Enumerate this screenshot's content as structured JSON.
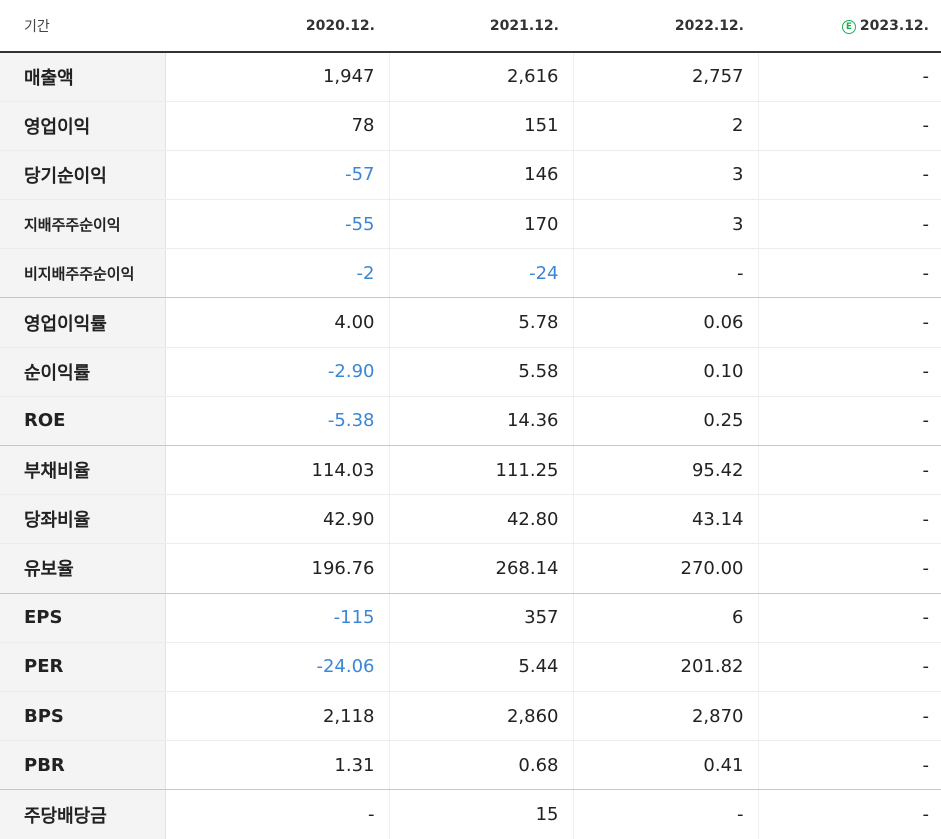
{
  "header": {
    "period_label": "기간",
    "years": [
      "2020.12.",
      "2021.12.",
      "2022.12.",
      "2023.12."
    ],
    "estimate_badge": "E"
  },
  "rows": [
    {
      "label": "매출액",
      "values": [
        "1,947",
        "2,616",
        "2,757",
        "-"
      ]
    },
    {
      "label": "영업이익",
      "values": [
        "78",
        "151",
        "2",
        "-"
      ]
    },
    {
      "label": "당기순이익",
      "values": [
        "-57",
        "146",
        "3",
        "-"
      ]
    },
    {
      "label": "지배주주순이익",
      "values": [
        "-55",
        "170",
        "3",
        "-"
      ]
    },
    {
      "label": "비지배주주순이익",
      "values": [
        "-2",
        "-24",
        "-",
        "-"
      ]
    },
    {
      "label": "영업이익률",
      "values": [
        "4.00",
        "5.78",
        "0.06",
        "-"
      ]
    },
    {
      "label": "순이익률",
      "values": [
        "-2.90",
        "5.58",
        "0.10",
        "-"
      ]
    },
    {
      "label": "ROE",
      "values": [
        "-5.38",
        "14.36",
        "0.25",
        "-"
      ]
    },
    {
      "label": "부채비율",
      "values": [
        "114.03",
        "111.25",
        "95.42",
        "-"
      ]
    },
    {
      "label": "당좌비율",
      "values": [
        "42.90",
        "42.80",
        "43.14",
        "-"
      ]
    },
    {
      "label": "유보율",
      "values": [
        "196.76",
        "268.14",
        "270.00",
        "-"
      ]
    },
    {
      "label": "EPS",
      "values": [
        "-115",
        "357",
        "6",
        "-"
      ]
    },
    {
      "label": "PER",
      "values": [
        "-24.06",
        "5.44",
        "201.82",
        "-"
      ]
    },
    {
      "label": "BPS",
      "values": [
        "2,118",
        "2,860",
        "2,870",
        "-"
      ]
    },
    {
      "label": "PBR",
      "values": [
        "1.31",
        "0.68",
        "0.41",
        "-"
      ]
    },
    {
      "label": "주당배당금",
      "values": [
        "-",
        "15",
        "-",
        "-"
      ]
    }
  ],
  "colors": {
    "negative": "#3b86d6",
    "estimate": "#1fae58",
    "label_bg": "#f4f4f4"
  }
}
